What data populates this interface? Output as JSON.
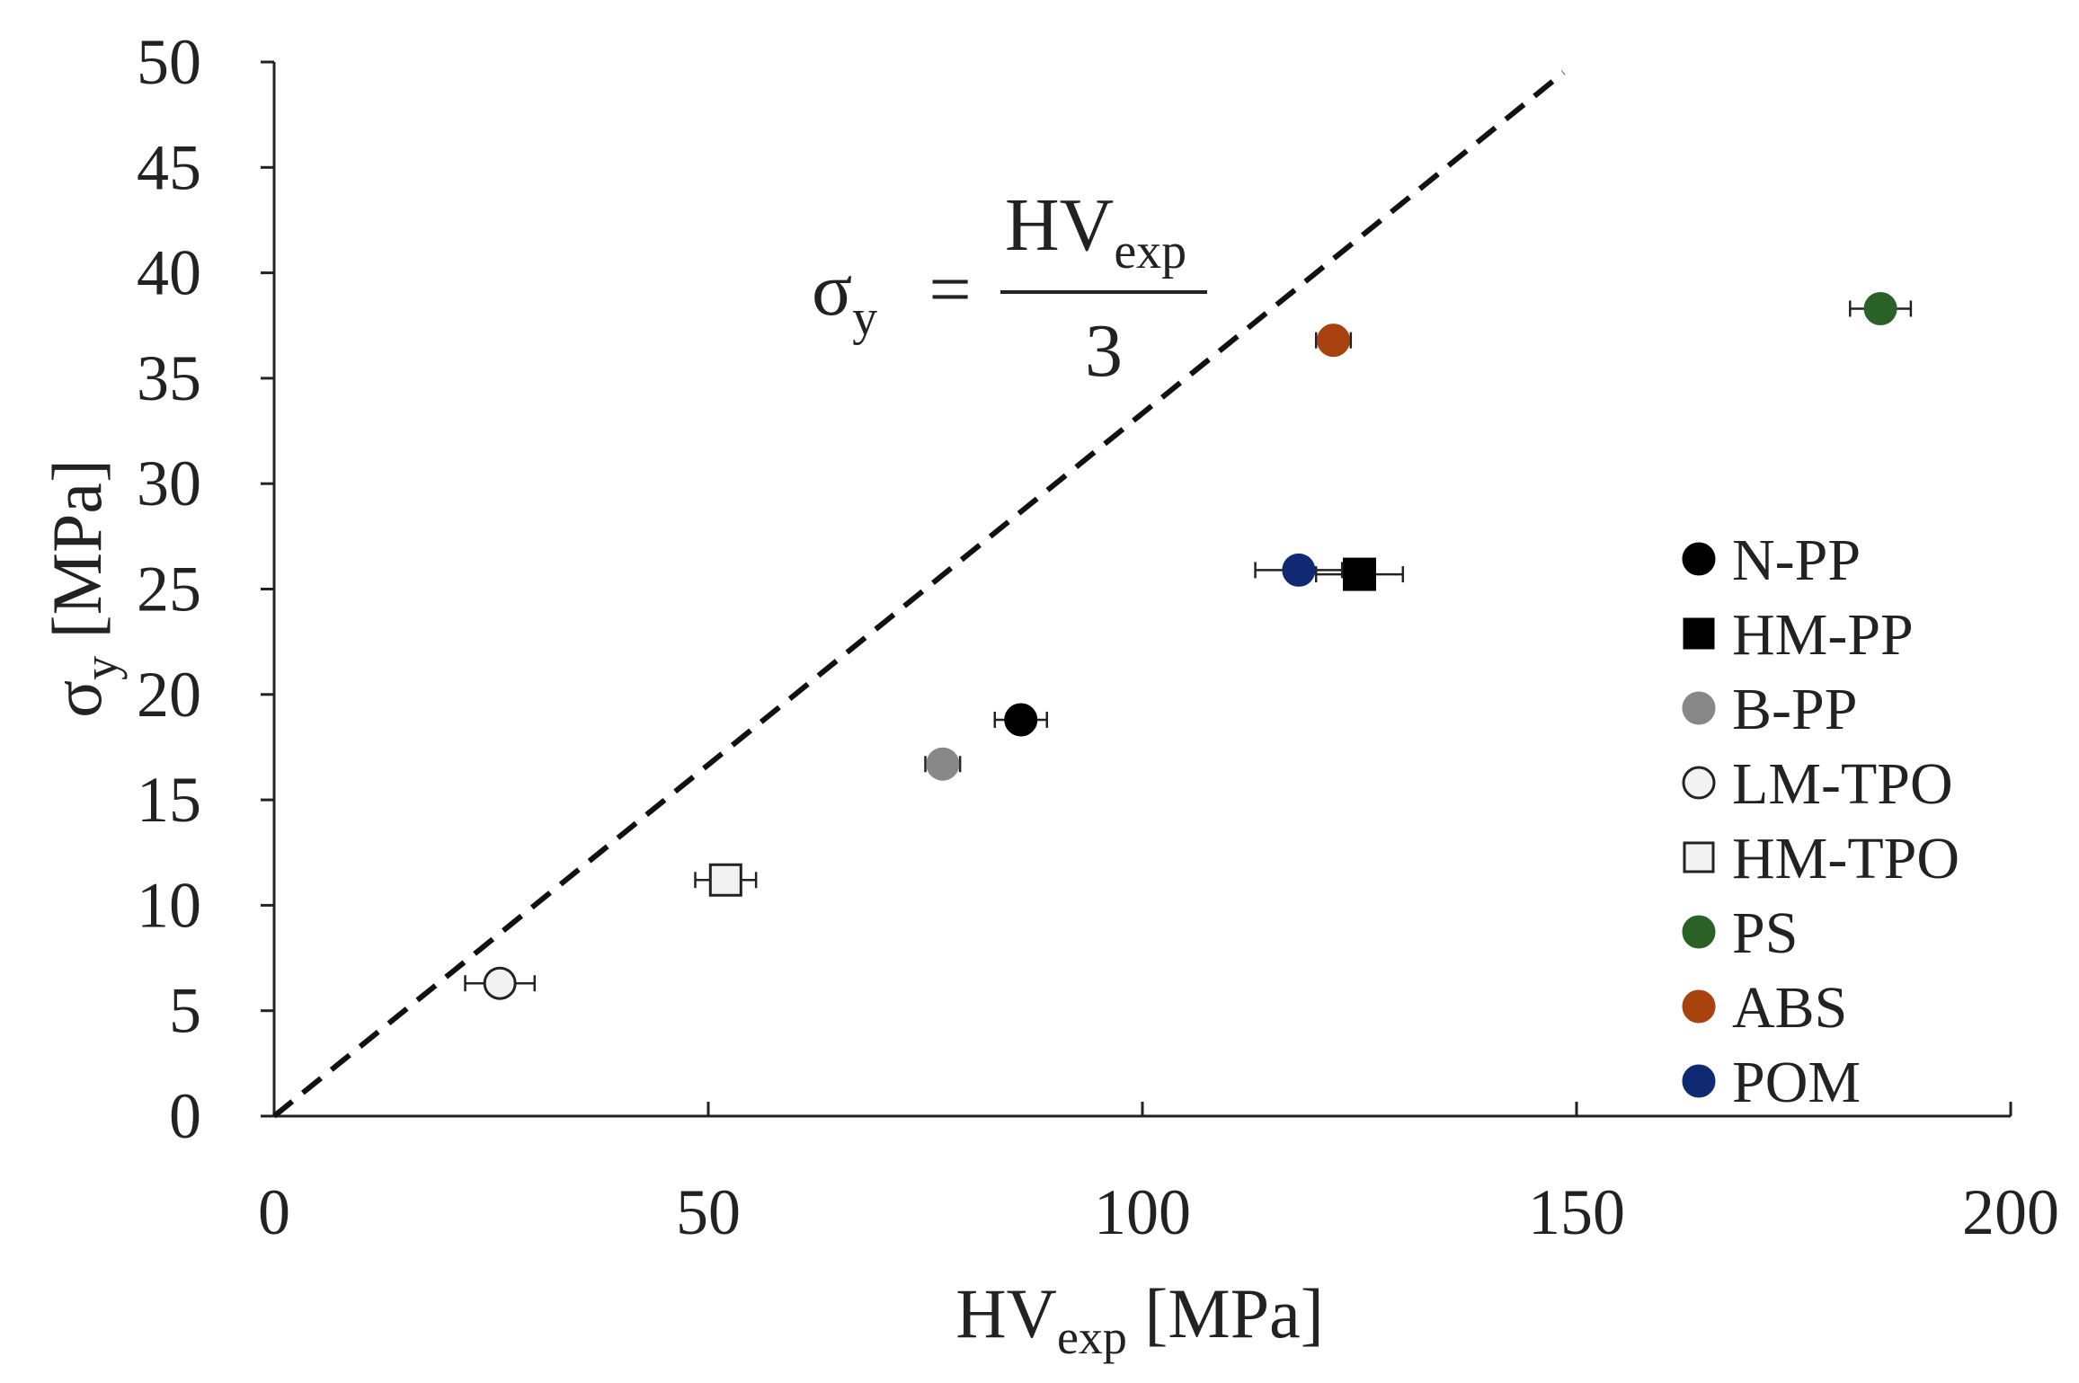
{
  "chart_data": {
    "type": "scatter",
    "xlabel": {
      "main": "HV",
      "sub": "exp",
      "unit": " [MPa]"
    },
    "ylabel": {
      "main": "σ",
      "sub": "y",
      "unit": " [MPa]"
    },
    "xlim": [
      0,
      200
    ],
    "ylim": [
      0,
      50
    ],
    "xticks": [
      "0",
      "50",
      "100",
      "150",
      "200"
    ],
    "yticks": [
      "0",
      "5",
      "10",
      "15",
      "20",
      "25",
      "30",
      "35",
      "40",
      "45",
      "50"
    ],
    "grid": false,
    "legend_position": "right",
    "reference_line": {
      "style": "dashed",
      "x": [
        0,
        148.5
      ],
      "y": [
        0,
        49.5
      ],
      "equation": {
        "lhs": "σ",
        "lhs_sub": "y",
        "equals": "=",
        "numerator": "HV",
        "numerator_sub": "exp",
        "denominator": "3"
      }
    },
    "series": [
      {
        "name": "N-PP",
        "marker": "circle",
        "fill": "#000000",
        "stroke": "#000000",
        "x": 86,
        "y": 18.8,
        "xerr": 3
      },
      {
        "name": "HM-PP",
        "marker": "square",
        "fill": "#000000",
        "stroke": "#000000",
        "x": 125,
        "y": 25.7,
        "xerr": 5
      },
      {
        "name": "B-PP",
        "marker": "circle",
        "fill": "#888888",
        "stroke": "#888888",
        "x": 77,
        "y": 16.7,
        "xerr": 2
      },
      {
        "name": "LM-TPO",
        "marker": "circle",
        "fill": "#f2f2f2",
        "stroke": "#222222",
        "x": 26,
        "y": 6.3,
        "xerr": 4
      },
      {
        "name": "HM-TPO",
        "marker": "square",
        "fill": "#f2f2f2",
        "stroke": "#222222",
        "x": 52,
        "y": 11.2,
        "xerr": 3.5
      },
      {
        "name": "PS",
        "marker": "circle",
        "fill": "#2a6127",
        "stroke": "#2a6127",
        "x": 185,
        "y": 38.3,
        "xerr": 3.5
      },
      {
        "name": "ABS",
        "marker": "circle",
        "fill": "#a8420e",
        "stroke": "#a8420e",
        "x": 122,
        "y": 36.8,
        "xerr": 2
      },
      {
        "name": "POM",
        "marker": "circle",
        "fill": "#0f2a73",
        "stroke": "#0f2a73",
        "x": 118,
        "y": 25.9,
        "xerr": 5
      }
    ]
  }
}
